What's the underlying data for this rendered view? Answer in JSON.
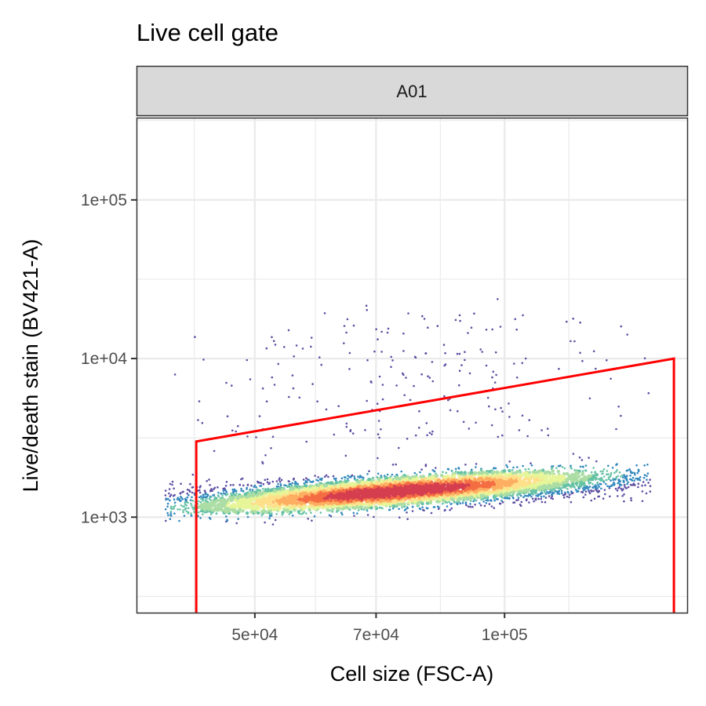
{
  "chart_data": {
    "type": "scatter",
    "title": "Live cell gate",
    "facet_label": "A01",
    "xlabel": "Cell size (FSC-A)",
    "ylabel": "Live/death stain (BV421-A)",
    "x_scale": "log",
    "y_scale": "log",
    "xlim": [
      36000,
      166000
    ],
    "ylim": [
      250,
      330000
    ],
    "x_ticks": [
      {
        "value": 50000,
        "label": "5e+04"
      },
      {
        "value": 70000,
        "label": "7e+04"
      },
      {
        "value": 100000,
        "label": "1e+05"
      }
    ],
    "y_ticks": [
      {
        "value": 1000,
        "label": "1e+03"
      },
      {
        "value": 10000,
        "label": "1e+04"
      },
      {
        "value": 100000,
        "label": "1e+05"
      }
    ],
    "grid": true,
    "density_palette": [
      "#5e4fa2",
      "#3288bd",
      "#66c2a5",
      "#abdda4",
      "#e6f598",
      "#fee08b",
      "#fdae61",
      "#f46d43",
      "#d53e4f"
    ],
    "density_peak": {
      "x": 74000,
      "y": 1450
    },
    "gate": {
      "color": "#ff0000",
      "vertices": [
        {
          "x": 42500,
          "y": 250
        },
        {
          "x": 42500,
          "y": 3000
        },
        {
          "x": 160000,
          "y": 10000
        },
        {
          "x": 160000,
          "y": 250
        }
      ]
    }
  }
}
